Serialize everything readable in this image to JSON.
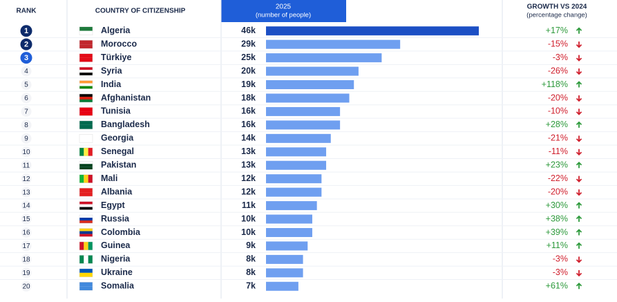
{
  "chart_data": {
    "type": "bar",
    "rank_header": "RANK",
    "country_header": "COUNTRY OF CITIZENSHIP",
    "value_header": "2025",
    "value_subheader": "(number of people)",
    "growth_header": "GROWTH VS 2024",
    "growth_subheader": "(percentage change)",
    "ranks": [
      1,
      2,
      3,
      4,
      5,
      6,
      7,
      8,
      9,
      10,
      11,
      12,
      13,
      14,
      15,
      16,
      17,
      18,
      19,
      20
    ],
    "categories": [
      "Algeria",
      "Morocco",
      "Türkiye",
      "Syria",
      "India",
      "Afghanistan",
      "Tunisia",
      "Bangladesh",
      "Georgia",
      "Senegal",
      "Pakistan",
      "Mali",
      "Albania",
      "Egypt",
      "Russia",
      "Colombia",
      "Guinea",
      "Nigeria",
      "Ukraine",
      "Somalia"
    ],
    "values": [
      46000,
      29000,
      25000,
      20000,
      19000,
      18000,
      16000,
      16000,
      14000,
      13000,
      13000,
      12000,
      12000,
      11000,
      10000,
      10000,
      9000,
      8000,
      8000,
      7000
    ],
    "value_labels": [
      "46k",
      "29k",
      "25k",
      "20k",
      "19k",
      "18k",
      "16k",
      "16k",
      "14k",
      "13k",
      "13k",
      "12k",
      "12k",
      "11k",
      "10k",
      "10k",
      "9k",
      "8k",
      "8k",
      "7k"
    ],
    "color": "#6f9ff0",
    "growth": {
      "values": [
        17,
        -15,
        -3,
        -26,
        118,
        -20,
        -10,
        28,
        -21,
        -11,
        23,
        -22,
        -20,
        30,
        38,
        39,
        11,
        -3,
        -3,
        61
      ],
      "value_labels": [
        "+17%",
        "-15%",
        "-3%",
        "-26%",
        "+118%",
        "-20%",
        "-10%",
        "+28%",
        "-21%",
        "-11%",
        "+23%",
        "-22%",
        "-20%",
        "+30%",
        "+38%",
        "+39%",
        "+11%",
        "-3%",
        "-3%",
        "+61%"
      ]
    }
  }
}
